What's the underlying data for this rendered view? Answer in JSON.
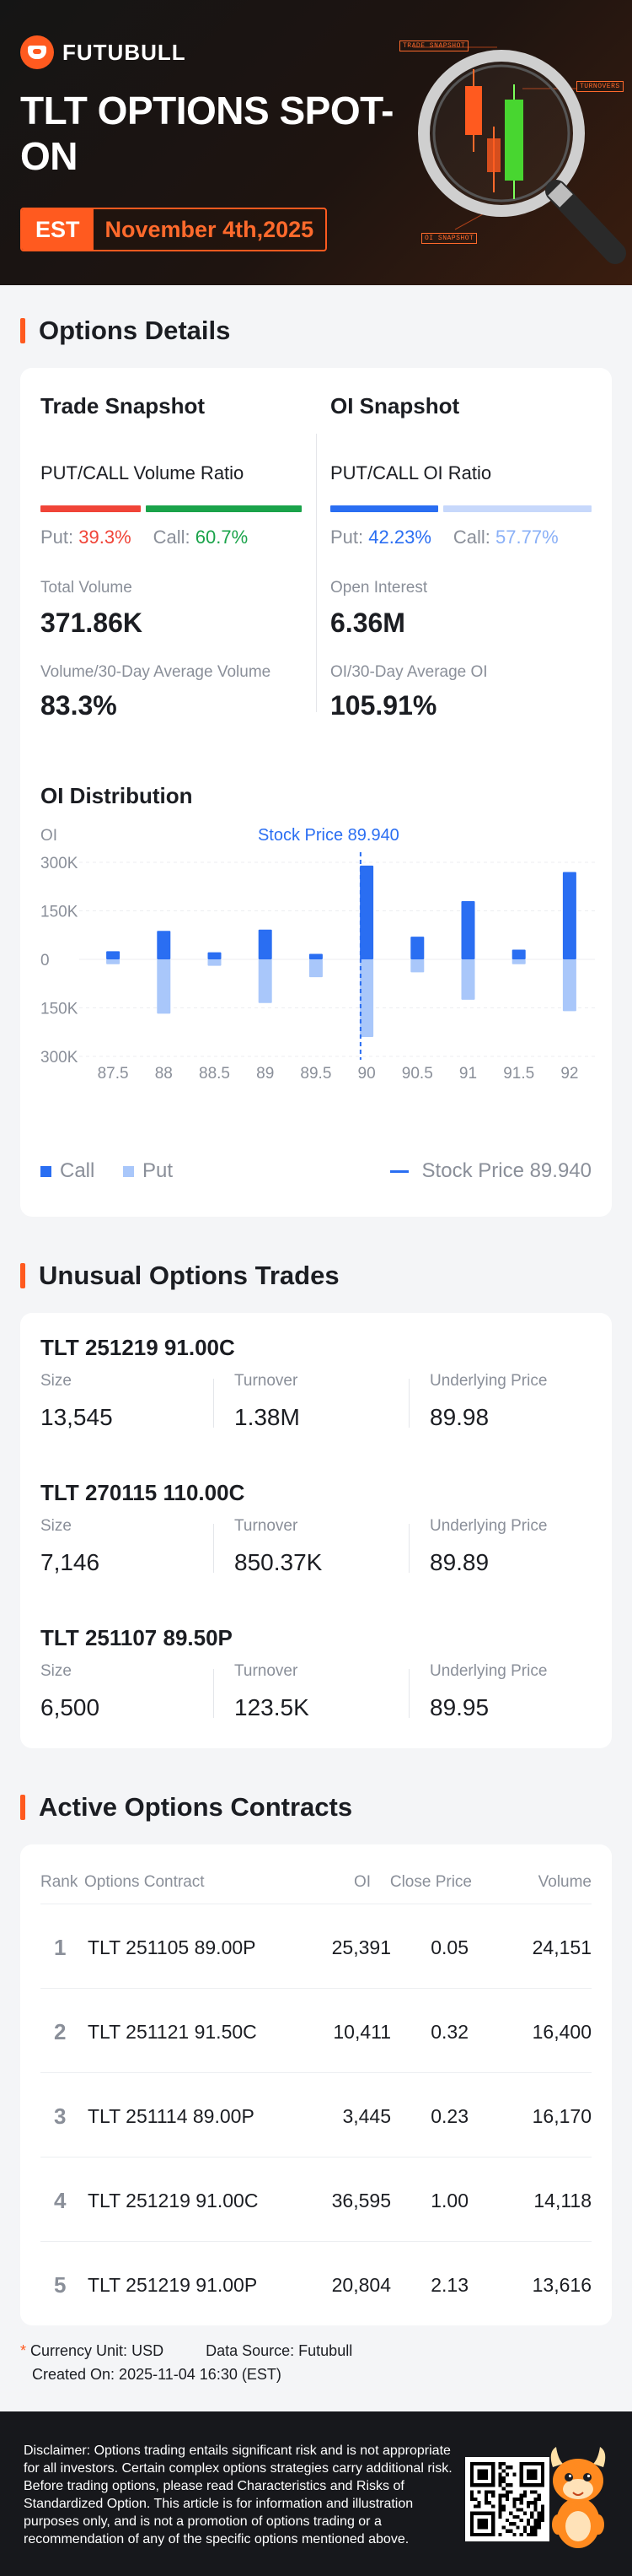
{
  "header": {
    "logo_text": "FUTUBULL",
    "title": "TLT OPTIONS SPOT-ON",
    "timezone": "EST",
    "date": "November 4th,2025",
    "deco_tags": [
      "TRADE SNAPSHOT",
      "TURNOVERS",
      "OI SNAPSHOT"
    ]
  },
  "options_details": {
    "heading": "Options Details",
    "trade_snapshot": {
      "title": "Trade Snapshot",
      "ratio_label": "PUT/CALL Volume Ratio",
      "put_label": "Put:",
      "put_value": "39.3%",
      "call_label": "Call:",
      "call_value": "60.7%",
      "put_pct": 39.3,
      "call_pct": 60.7,
      "stat1_label": "Total Volume",
      "stat1_value": "371.86K",
      "stat2_label": "Volume/30-Day Average Volume",
      "stat2_value": "83.3%"
    },
    "oi_snapshot": {
      "title": "OI Snapshot",
      "ratio_label": "PUT/CALL OI Ratio",
      "put_label": "Put:",
      "put_value": "42.23%",
      "call_label": "Call:",
      "call_value": "57.77%",
      "put_pct": 42.23,
      "call_pct": 57.77,
      "stat1_label": "Open Interest",
      "stat1_value": "6.36M",
      "stat2_label": "OI/30-Day Average OI",
      "stat2_value": "105.91%"
    },
    "distribution_title": "OI Distribution",
    "legend": {
      "call": "Call",
      "put": "Put",
      "stock_price": "Stock Price 89.940"
    }
  },
  "chart_data": {
    "type": "bar",
    "title": "OI Distribution",
    "ylabel": "OI",
    "yticks": [
      "300K",
      "150K",
      "0",
      "150K",
      "300K"
    ],
    "ylim": [
      -300000,
      300000
    ],
    "categories": [
      "87.5",
      "88",
      "88.5",
      "89",
      "89.5",
      "90",
      "90.5",
      "91",
      "91.5",
      "92"
    ],
    "series": [
      {
        "name": "Call",
        "values": [
          25000,
          88000,
          22000,
          92000,
          17000,
          290000,
          70000,
          180000,
          30000,
          270000
        ]
      },
      {
        "name": "Put",
        "values": [
          -15000,
          -168000,
          -20000,
          -135000,
          -55000,
          -240000,
          -40000,
          -125000,
          -15000,
          -160000
        ]
      }
    ],
    "stock_price_label": "Stock Price 89.940",
    "stock_price": 89.94,
    "colors": {
      "call": "#2a6ef2",
      "put": "#a9c7fa",
      "stock_line": "#2a6ef2"
    }
  },
  "unusual_trades": {
    "heading": "Unusual Options Trades",
    "size_label": "Size",
    "turnover_label": "Turnover",
    "underlying_label": "Underlying Price",
    "trades": [
      {
        "name": "TLT 251219 91.00C",
        "size": "13,545",
        "turnover": "1.38M",
        "underlying": "89.98"
      },
      {
        "name": "TLT 270115 110.00C",
        "size": "7,146",
        "turnover": "850.37K",
        "underlying": "89.89"
      },
      {
        "name": "TLT 251107 89.50P",
        "size": "6,500",
        "turnover": "123.5K",
        "underlying": "89.95"
      }
    ]
  },
  "active_contracts": {
    "heading": "Active Options Contracts",
    "columns": {
      "rank": "Rank",
      "contract": "Options Contract",
      "oi": "OI",
      "close": "Close Price",
      "volume": "Volume"
    },
    "rows": [
      {
        "rank": "1",
        "contract": "TLT 251105 89.00P",
        "oi": "25,391",
        "close": "0.05",
        "volume": "24,151"
      },
      {
        "rank": "2",
        "contract": "TLT 251121 91.50C",
        "oi": "10,411",
        "close": "0.32",
        "volume": "16,400"
      },
      {
        "rank": "3",
        "contract": "TLT 251114 89.00P",
        "oi": "3,445",
        "close": "0.23",
        "volume": "16,170"
      },
      {
        "rank": "4",
        "contract": "TLT 251219 91.00C",
        "oi": "36,595",
        "close": "1.00",
        "volume": "14,118"
      },
      {
        "rank": "5",
        "contract": "TLT 251219 91.00P",
        "oi": "20,804",
        "close": "2.13",
        "volume": "13,616"
      }
    ]
  },
  "footer": {
    "star": "*",
    "currency": "Currency Unit: USD",
    "source": "Data Source: Futubull",
    "created": "Created On: 2025-11-04 16:30 (EST)",
    "disclaimer": "Disclaimer: Options trading entails significant risk and is not appropriate for all investors. Certain complex options strategies carry additional risk. Before trading options, please read Characteristics and Risks of Standardized Option. This article is for information and illustration purposes only, and is not a promotion of options trading or a recommendation of any of the specific options mentioned above."
  },
  "theme": {
    "accent": "#ff5a1f",
    "put_red": "#f04438",
    "call_green": "#1aa34a",
    "blue": "#2a6ef2",
    "light_blue": "#a9c7fa"
  }
}
